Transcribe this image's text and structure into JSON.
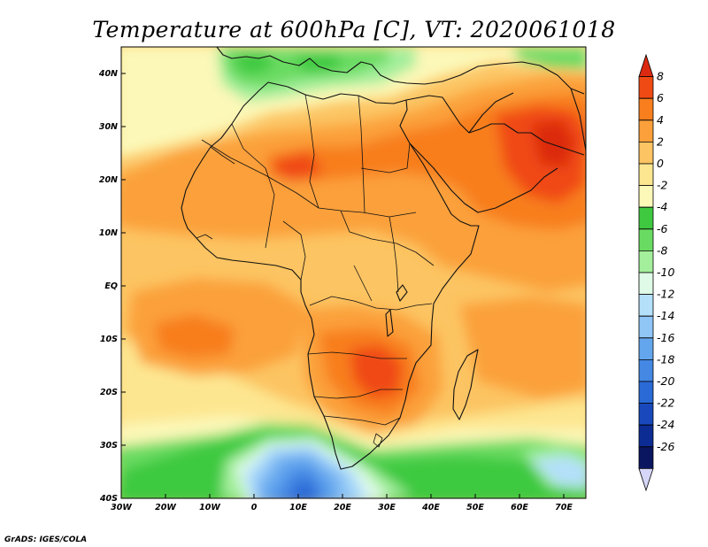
{
  "title": "Temperature at 600hPa [C], VT: 2020061018",
  "credit": "GrADS: IGES/COLA",
  "map": {
    "variable": "Temperature",
    "level": "600hPa",
    "units": "C",
    "valid_time": "2020061018",
    "lon_labels": [
      "30W",
      "20W",
      "10W",
      "0",
      "10E",
      "20E",
      "30E",
      "40E",
      "50E",
      "60E",
      "70E"
    ],
    "lat_labels": [
      "40N",
      "30N",
      "20N",
      "10N",
      "EQ",
      "10S",
      "20S",
      "30S",
      "40S"
    ]
  },
  "colorbar": {
    "labels": [
      "8",
      "6",
      "4",
      "2",
      "0",
      "-2",
      "-4",
      "-6",
      "-8",
      "-10",
      "-12",
      "-14",
      "-16",
      "-18",
      "-20",
      "-22",
      "-24",
      "-26"
    ],
    "colors": [
      "#dc2a10",
      "#f04a14",
      "#f87e1e",
      "#fba03a",
      "#fcc462",
      "#fde690",
      "#fcf8b8",
      "#3ec940",
      "#6adb62",
      "#a4ef9c",
      "#e0fae8",
      "#b4e0fa",
      "#90c6f6",
      "#64a6ee",
      "#4488e4",
      "#2a6ad6",
      "#1848bc",
      "#0c2c94",
      "#0a1660",
      "#d6d6f8"
    ]
  }
}
